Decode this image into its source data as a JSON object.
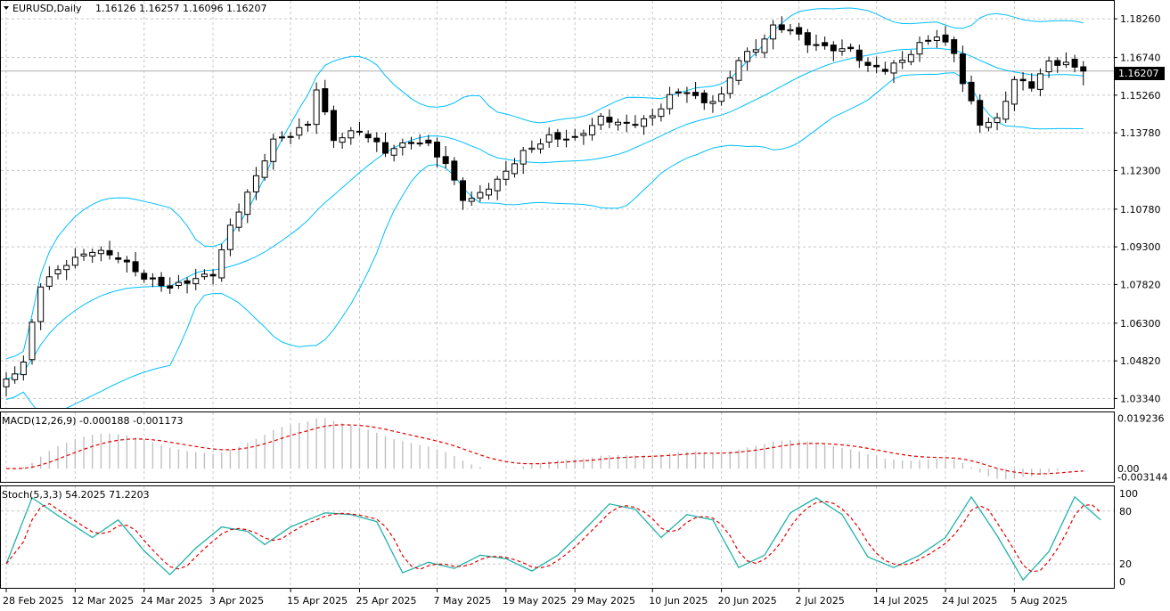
{
  "window": {
    "symbol_label": "EURUSD,Daily",
    "ohlc_text": "1.16126 1.16257 1.16096 1.16207",
    "menu_icon": "triangle-down-icon"
  },
  "colors": {
    "candle_border": "#000000",
    "bollinger": "#00bfff",
    "macd_hist": "#c0c0c0",
    "macd_signal": "#e00000",
    "stoch_main": "#20b2aa",
    "stoch_signal": "#e00000",
    "grid": "#c8c8c8"
  },
  "chart_data": [
    {
      "type": "candlestick",
      "title": "EURUSD,Daily",
      "price_ticks": [
        "1.18260",
        "1.16740",
        "1.15260",
        "1.13780",
        "1.12300",
        "1.10780",
        "1.09300",
        "1.07820",
        "1.06300",
        "1.04820",
        "1.03340"
      ],
      "current_price_label": "1.16207",
      "ylim": [
        1.0311,
        1.1879
      ],
      "x_labels": [
        "28 Feb 2025",
        "12 Mar 2025",
        "24 Mar 2025",
        "3 Apr 2025",
        "15 Apr 2025",
        "25 Apr 2025",
        "7 May 2025",
        "19 May 2025",
        "29 May 2025",
        "10 Jun 2025",
        "20 Jun 2025",
        "2 Jul 2025",
        "14 Jul 2025",
        "24 Jul 2025",
        "5 Aug 2025"
      ],
      "close_anchor_series": {
        "name": "close",
        "points": [
          [
            0,
            1.04
          ],
          [
            2,
            1.048
          ],
          [
            4,
            1.079
          ],
          [
            7,
            1.087
          ],
          [
            10,
            1.091
          ],
          [
            13,
            1.088
          ],
          [
            16,
            1.081
          ],
          [
            19,
            1.078
          ],
          [
            22,
            1.081
          ],
          [
            24,
            1.082
          ],
          [
            26,
            1.1
          ],
          [
            29,
            1.12
          ],
          [
            31,
            1.135
          ],
          [
            33,
            1.138
          ],
          [
            35,
            1.142
          ],
          [
            36,
            1.156
          ],
          [
            38,
            1.135
          ],
          [
            41,
            1.138
          ],
          [
            44,
            1.13
          ],
          [
            47,
            1.135
          ],
          [
            49,
            1.134
          ],
          [
            51,
            1.126
          ],
          [
            53,
            1.112
          ],
          [
            54,
            1.111
          ],
          [
            57,
            1.118
          ],
          [
            60,
            1.13
          ],
          [
            63,
            1.137
          ],
          [
            66,
            1.136
          ],
          [
            69,
            1.143
          ],
          [
            72,
            1.14
          ],
          [
            75,
            1.144
          ],
          [
            77,
            1.153
          ],
          [
            79,
            1.155
          ],
          [
            81,
            1.15
          ],
          [
            83,
            1.152
          ],
          [
            85,
            1.166
          ],
          [
            87,
            1.17
          ],
          [
            89,
            1.179
          ],
          [
            91,
            1.179
          ],
          [
            93,
            1.174
          ],
          [
            95,
            1.172
          ],
          [
            98,
            1.17
          ],
          [
            100,
            1.163
          ],
          [
            102,
            1.162
          ],
          [
            104,
            1.166
          ],
          [
            106,
            1.173
          ],
          [
            108,
            1.177
          ],
          [
            110,
            1.17
          ],
          [
            111,
            1.158
          ],
          [
            113,
            1.141
          ],
          [
            115,
            1.142
          ],
          [
            117,
            1.158
          ],
          [
            119,
            1.156
          ],
          [
            121,
            1.166
          ],
          [
            123,
            1.166
          ],
          [
            125,
            1.1621
          ]
        ]
      },
      "bollinger": {
        "period": 20,
        "deviation": 2
      }
    },
    {
      "type": "bar",
      "title": "MACD(12,26,9) -0.000188 -0.001173",
      "ticks": [
        "0.019236",
        "0.00",
        "-0.003144"
      ],
      "ylim": [
        -0.004,
        0.0205
      ],
      "series": [
        {
          "name": "MACD",
          "style": "histogram"
        },
        {
          "name": "Signal",
          "style": "dashed-line"
        }
      ]
    },
    {
      "type": "line",
      "title": "Stoch(5,3,3) 54.2025 71.2203",
      "ticks": [
        "100",
        "80",
        "20",
        "0"
      ],
      "ylim": [
        -4,
        105
      ],
      "levels": [
        20,
        80
      ],
      "series": [
        {
          "name": "Main",
          "style": "solid"
        },
        {
          "name": "Signal",
          "style": "dashed"
        }
      ],
      "anchor_points": [
        [
          0,
          20
        ],
        [
          3,
          95
        ],
        [
          6,
          75
        ],
        [
          10,
          50
        ],
        [
          13,
          70
        ],
        [
          16,
          35
        ],
        [
          19,
          8
        ],
        [
          22,
          38
        ],
        [
          25,
          62
        ],
        [
          28,
          57
        ],
        [
          30,
          42
        ],
        [
          33,
          62
        ],
        [
          37,
          78
        ],
        [
          40,
          76
        ],
        [
          43,
          68
        ],
        [
          46,
          10
        ],
        [
          49,
          22
        ],
        [
          52,
          15
        ],
        [
          55,
          30
        ],
        [
          58,
          26
        ],
        [
          61,
          12
        ],
        [
          64,
          30
        ],
        [
          67,
          58
        ],
        [
          70,
          88
        ],
        [
          73,
          82
        ],
        [
          76,
          50
        ],
        [
          79,
          76
        ],
        [
          82,
          70
        ],
        [
          85,
          16
        ],
        [
          88,
          30
        ],
        [
          91,
          78
        ],
        [
          94,
          95
        ],
        [
          97,
          76
        ],
        [
          100,
          28
        ],
        [
          103,
          16
        ],
        [
          106,
          30
        ],
        [
          109,
          50
        ],
        [
          112,
          96
        ],
        [
          115,
          52
        ],
        [
          118,
          2
        ],
        [
          121,
          34
        ],
        [
          124,
          96
        ],
        [
          127,
          70
        ],
        [
          128,
          54
        ]
      ]
    }
  ]
}
